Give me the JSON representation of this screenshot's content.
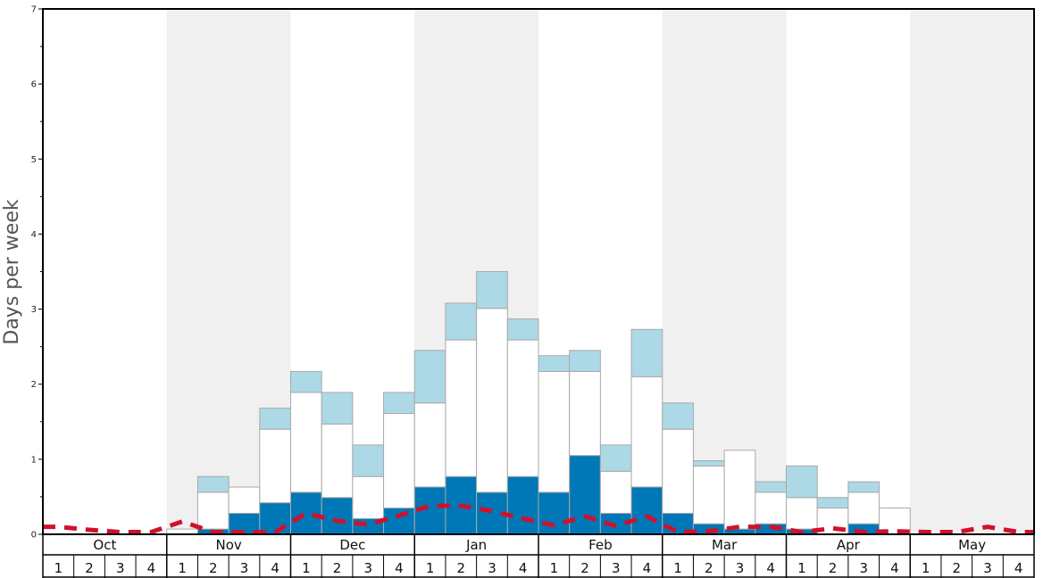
{
  "chart_data": {
    "type": "bar",
    "title": "",
    "xlabel": "",
    "ylabel": "Days per week",
    "ylim": [
      0,
      7
    ],
    "yticks": [
      0,
      1,
      2,
      3,
      4,
      5,
      6,
      7
    ],
    "months": [
      "Oct",
      "Nov",
      "Dec",
      "Jan",
      "Feb",
      "Mar",
      "Apr",
      "May"
    ],
    "weeks_per_month": [
      "1",
      "2",
      "3",
      "4"
    ],
    "month_shading": [
      false,
      true,
      false,
      true,
      false,
      true,
      false,
      true
    ],
    "stacking": "each series value is a cumulative top level; the next level sits on top",
    "series": [
      {
        "color": "#0077b6",
        "values": [
          0,
          0,
          0,
          0,
          0,
          0.07,
          0.28,
          0.42,
          0.56,
          0.49,
          0.21,
          0.35,
          0.63,
          0.77,
          0.56,
          0.77,
          0.56,
          1.05,
          0.28,
          0.63,
          0.28,
          0.14,
          0.07,
          0.14,
          0.07,
          0,
          0.14,
          0,
          0,
          0,
          0,
          0
        ]
      },
      {
        "color": "#ffffff",
        "values": [
          0,
          0,
          0,
          0,
          0.07,
          0.56,
          0.63,
          1.4,
          1.89,
          1.47,
          0.77,
          1.61,
          1.75,
          2.59,
          3.01,
          2.59,
          2.17,
          2.17,
          0.84,
          2.1,
          1.4,
          0.91,
          1.12,
          0.56,
          0.49,
          0.35,
          0.56,
          0.35,
          0,
          0,
          0,
          0
        ]
      },
      {
        "color": "#add8e6",
        "values": [
          0,
          0,
          0,
          0,
          0.07,
          0.77,
          0.63,
          1.68,
          2.17,
          1.89,
          1.19,
          1.89,
          2.45,
          3.08,
          3.5,
          2.87,
          2.38,
          2.45,
          1.19,
          2.73,
          1.75,
          0.98,
          1.12,
          0.7,
          0.91,
          0.49,
          0.7,
          0.35,
          0,
          0,
          0,
          0
        ]
      },
      {
        "type": "line",
        "style": "dashed",
        "color": "#d0112b",
        "values": [
          0.1,
          0.06,
          0.03,
          0.03,
          0.17,
          0.03,
          0.03,
          0.03,
          0.28,
          0.18,
          0.13,
          0.25,
          0.38,
          0.38,
          0.31,
          0.21,
          0.12,
          0.24,
          0.11,
          0.24,
          0.03,
          0.04,
          0.1,
          0.1,
          0.03,
          0.08,
          0.03,
          0.04,
          0.03,
          0.03,
          0.1,
          0.03
        ]
      }
    ],
    "grid": false,
    "legend": "none"
  }
}
